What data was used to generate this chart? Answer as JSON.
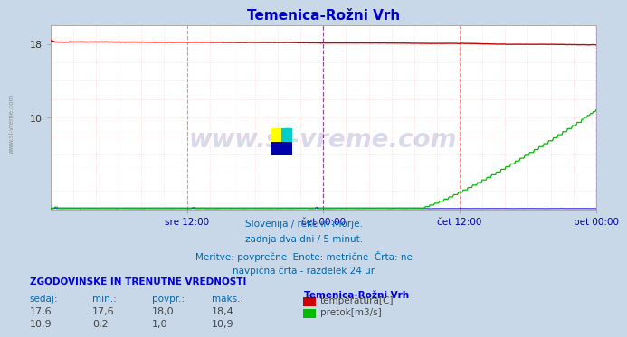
{
  "title": "Temenica-Rožni Vrh",
  "title_color": "#0000cc",
  "bg_color": "#c8d8e8",
  "plot_bg_color": "#ffffff",
  "grid_color_dotted": "#ffcccc",
  "grid_color_vline": "#ffaaaa",
  "watermark_text": "www.si-vreme.com",
  "watermark_color": "#000080",
  "watermark_alpha": 0.15,
  "x_tick_labels": [
    "sre 12:00",
    "čet 00:00",
    "čet 12:00",
    "pet 00:00"
  ],
  "x_tick_positions": [
    0.25,
    0.5,
    0.75,
    1.0
  ],
  "tick_color": "#0000aa",
  "ylim": [
    0,
    20
  ],
  "yticks": [
    10,
    18
  ],
  "subtitle_lines": [
    "Slovenija / reke in morje.",
    "zadnja dva dni / 5 minut.",
    "Meritve: povprečne  Enote: metrične  Črta: ne",
    "navpična črta - razdelek 24 ur"
  ],
  "subtitle_color": "#0066aa",
  "stats_header": "ZGODOVINSKE IN TRENUTNE VREDNOSTI",
  "stats_header_color": "#0000dd",
  "stats_labels": [
    "sedaj:",
    "min.:",
    "povpr.:",
    "maks.:"
  ],
  "stats_label_color": "#0066aa",
  "stats_row1": [
    "17,6",
    "17,6",
    "18,0",
    "18,4"
  ],
  "stats_row2": [
    "10,9",
    "0,2",
    "1,0",
    "10,9"
  ],
  "stats_color": "#444444",
  "legend_station": "Temenica-Rožni Vrh",
  "legend_station_color": "#0000cc",
  "legend_items": [
    "temperatura[C]",
    "pretok[m3/s]"
  ],
  "legend_colors": [
    "#cc0000",
    "#00bb00"
  ],
  "temp_line_color": "#cc0000",
  "flow_line_color": "#00bb00",
  "height_line_color": "#0000cc",
  "n_points": 576
}
